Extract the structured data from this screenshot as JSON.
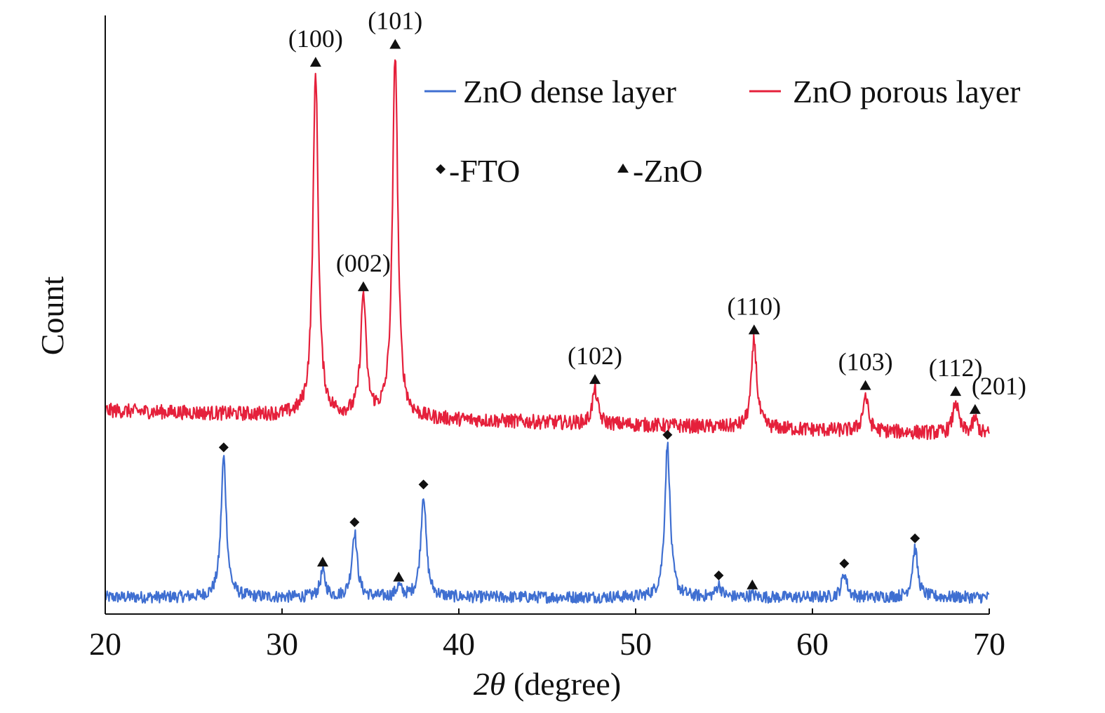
{
  "chart_data": {
    "type": "line",
    "title": "",
    "xlabel": {
      "italic": "2θ",
      "rest": " (degree)"
    },
    "ylabel": "Count",
    "xlim": [
      20,
      70
    ],
    "ylim": [
      0,
      1000
    ],
    "xticks": [
      20,
      30,
      40,
      50,
      60,
      70
    ],
    "y_tick_labels": false,
    "grid": false,
    "legend_placement": "top-right",
    "marker_legend": [
      {
        "symbol": "diamond",
        "label": "-FTO"
      },
      {
        "symbol": "triangle",
        "label": "-ZnO"
      }
    ],
    "series": [
      {
        "name": "ZnO dense layer",
        "color": "#3f6fd1",
        "baseline": 28,
        "noise": 10,
        "peaks": [
          {
            "x": 26.7,
            "y": 262
          },
          {
            "x": 32.3,
            "y": 70
          },
          {
            "x": 34.1,
            "y": 137
          },
          {
            "x": 36.6,
            "y": 45
          },
          {
            "x": 38.0,
            "y": 200
          },
          {
            "x": 51.8,
            "y": 283
          },
          {
            "x": 54.7,
            "y": 48
          },
          {
            "x": 56.6,
            "y": 32
          },
          {
            "x": 61.8,
            "y": 68
          },
          {
            "x": 65.8,
            "y": 110
          }
        ],
        "markers": [
          {
            "x": 26.7,
            "y": 262,
            "symbol": "diamond"
          },
          {
            "x": 32.3,
            "y": 70,
            "symbol": "triangle"
          },
          {
            "x": 34.1,
            "y": 137,
            "symbol": "diamond"
          },
          {
            "x": 36.6,
            "y": 45,
            "symbol": "triangle"
          },
          {
            "x": 38.0,
            "y": 200,
            "symbol": "diamond"
          },
          {
            "x": 51.8,
            "y": 283,
            "symbol": "diamond"
          },
          {
            "x": 54.7,
            "y": 48,
            "symbol": "diamond"
          },
          {
            "x": 56.6,
            "y": 32,
            "symbol": "triangle"
          },
          {
            "x": 61.8,
            "y": 68,
            "symbol": "diamond"
          },
          {
            "x": 65.8,
            "y": 110,
            "symbol": "diamond"
          }
        ]
      },
      {
        "name": "ZnO porous layer",
        "color": "#e5203b",
        "baseline_start": 340,
        "baseline_end": 300,
        "noise": 12,
        "peaks": [
          {
            "x": 31.9,
            "y": 905
          },
          {
            "x": 34.6,
            "y": 530
          },
          {
            "x": 36.4,
            "y": 935
          },
          {
            "x": 47.7,
            "y": 375
          },
          {
            "x": 56.7,
            "y": 458
          },
          {
            "x": 63.0,
            "y": 365
          },
          {
            "x": 68.1,
            "y": 355
          },
          {
            "x": 69.2,
            "y": 325
          }
        ],
        "markers": [
          {
            "x": 31.9,
            "y": 905,
            "symbol": "triangle",
            "label": "(100)"
          },
          {
            "x": 34.6,
            "y": 530,
            "symbol": "triangle",
            "label": "(002)"
          },
          {
            "x": 36.4,
            "y": 935,
            "symbol": "triangle",
            "label": "(101)"
          },
          {
            "x": 47.7,
            "y": 375,
            "symbol": "triangle",
            "label": "(102)"
          },
          {
            "x": 56.7,
            "y": 458,
            "symbol": "triangle",
            "label": "(110)"
          },
          {
            "x": 63.0,
            "y": 365,
            "symbol": "triangle",
            "label": "(103)"
          },
          {
            "x": 68.1,
            "y": 355,
            "symbol": "triangle",
            "label": "(112)"
          },
          {
            "x": 69.2,
            "y": 325,
            "symbol": "triangle",
            "label": "(201)"
          }
        ]
      }
    ]
  }
}
